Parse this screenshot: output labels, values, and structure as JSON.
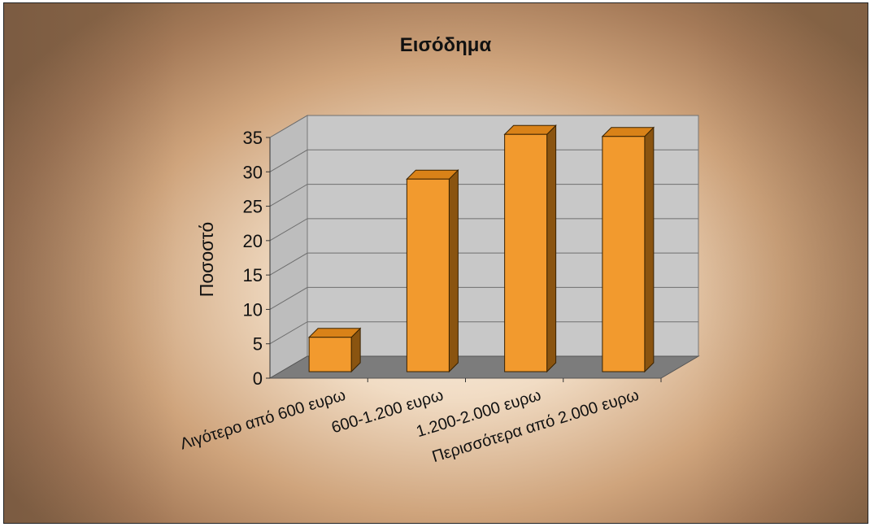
{
  "chart_data": {
    "type": "bar",
    "title": "Εισόδημα",
    "xlabel": "",
    "ylabel": "Ποσοστό",
    "categories": [
      "Λιγότερο από 600 ευρω",
      "600-1.200 ευρω",
      "1.200-2.000 ευρω",
      "Περισσότερα από 2.000 ευρω"
    ],
    "values": [
      5,
      28,
      34.5,
      34.2
    ],
    "ylim": [
      0,
      35
    ],
    "yticks": [
      "0",
      "5",
      "10",
      "15",
      "20",
      "25",
      "30",
      "35"
    ],
    "grid": true,
    "legend": "none",
    "three_d": true
  },
  "colors": {
    "bar_front": "#f29a2e",
    "bar_top": "#d98218",
    "bar_side": "#8a5410",
    "wall": "#c8c8c8",
    "floor": "#7c7c7c"
  }
}
